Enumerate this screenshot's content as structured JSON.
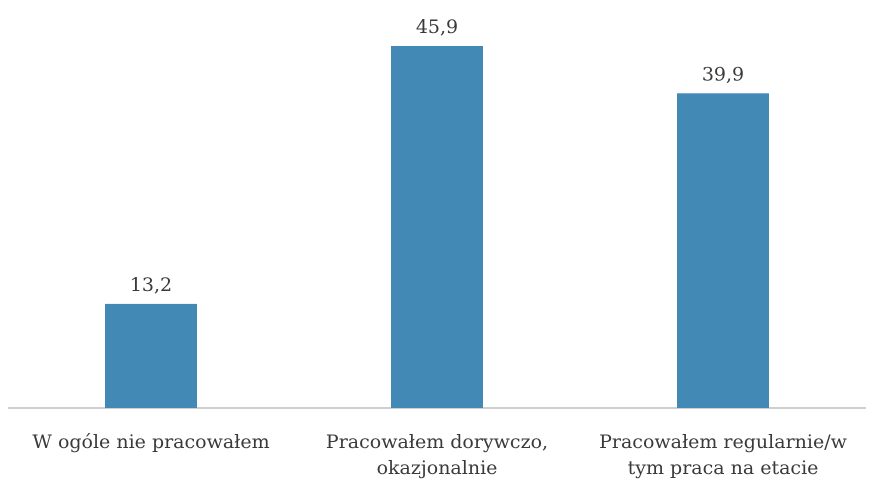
{
  "chart_data": {
    "type": "bar",
    "categories": [
      "W ogóle nie pracowałem",
      "Pracowałem dorywczo, okazjonalnie",
      "Pracowałem regularnie/w tym praca na etacie"
    ],
    "category_lines": [
      [
        "W ogóle nie pracowałem"
      ],
      [
        "Pracowałem dorywczo,",
        "okazjonalnie"
      ],
      [
        "Pracowałem regularnie/w",
        "tym praca na etacie"
      ]
    ],
    "values": [
      13.2,
      45.9,
      39.9
    ],
    "value_labels": [
      "13,2",
      "45,9",
      "39,9"
    ],
    "title": "",
    "xlabel": "",
    "ylabel": "",
    "ylim": [
      0,
      50
    ],
    "grid": false,
    "legend": "none",
    "colors": {
      "bar": "#4289B5",
      "axis": "#BFBFBF",
      "text": "#3A3A3A"
    }
  }
}
